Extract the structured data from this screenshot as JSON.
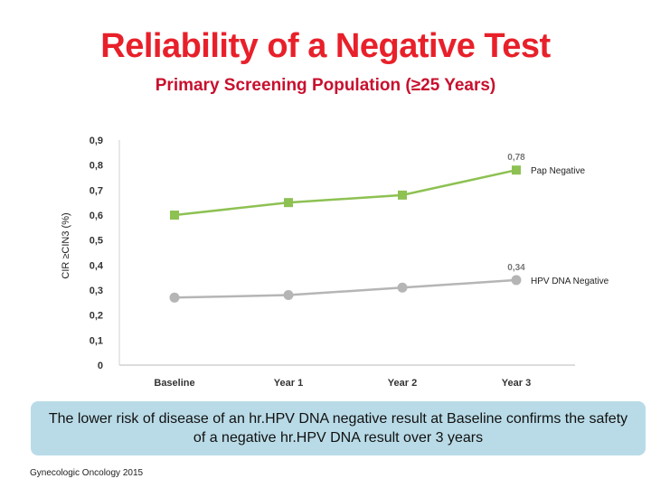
{
  "slide": {
    "title": "Reliability of a Negative Test",
    "subtitle": "Primary Screening Population (≥25 Years)",
    "callout": "The lower risk of disease of an hr.HPV DNA negative result at Baseline confirms the safety of a negative hr.HPV DNA result over 3 years",
    "source": "Gynecologic Oncology 2015"
  },
  "colors": {
    "title": "#e8202a",
    "pap": "#8dc152",
    "hpv": "#b5b5b5",
    "callout_bg": "#b9dbe7"
  },
  "chart_data": {
    "type": "line",
    "title": "",
    "xlabel": "",
    "ylabel": "CIR ≥CIN3 (%)",
    "categories": [
      "Baseline",
      "Year 1",
      "Year 2",
      "Year 3"
    ],
    "ylim": [
      0,
      0.9
    ],
    "yticks": [
      "0",
      "0,1",
      "0,2",
      "0,3",
      "0,4",
      "0,5",
      "0,6",
      "0,7",
      "0,8",
      "0,9"
    ],
    "grid": false,
    "series": [
      {
        "name": "Pap Negative",
        "values": [
          0.6,
          0.65,
          0.68,
          0.78
        ],
        "marker": "square",
        "color": "#8dc152",
        "end_label": "0,78"
      },
      {
        "name": "HPV DNA Negative",
        "values": [
          0.27,
          0.28,
          0.31,
          0.34
        ],
        "marker": "circle",
        "color": "#b5b5b5",
        "end_label": "0,34"
      }
    ]
  }
}
